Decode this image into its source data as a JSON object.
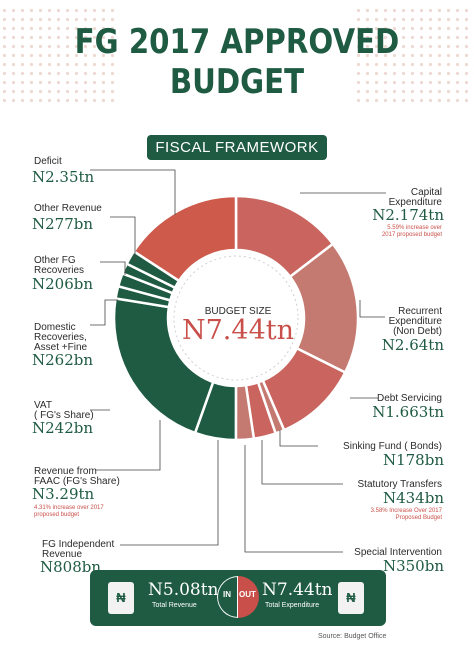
{
  "header": {
    "title": "FG 2017 APPROVED BUDGET",
    "subtitle": "FISCAL FRAMEWORK"
  },
  "center": {
    "label": "BUDGET SIZE",
    "value": "N7.44tn"
  },
  "chart_data": {
    "type": "pie",
    "title": "FG 2017 APPROVED BUDGET",
    "subtitle": "FISCAL FRAMEWORK",
    "slices": [
      {
        "label": "Capital Expenditure",
        "display": "N2.174tn",
        "value": 2174,
        "unit": "N bn",
        "group": "Total Expenditure",
        "note": "5.59% increase over 2017 proposed budget",
        "color": "#c9645e"
      },
      {
        "label": "Recurrent Expenditure (Non Debt)",
        "display": "N2.64tn",
        "value": 2640,
        "unit": "N bn",
        "group": "Total Expenditure",
        "color": "#c57a71"
      },
      {
        "label": "Debt Servicing",
        "display": "N1.663tn",
        "value": 1663,
        "unit": "N bn",
        "group": "Total Expenditure",
        "color": "#c9645e"
      },
      {
        "label": "Sinking Fund ( Bonds)",
        "display": "N178bn",
        "value": 178,
        "unit": "N bn",
        "group": "Total Expenditure",
        "color": "#c57a71"
      },
      {
        "label": "Statutory Transfers",
        "display": "N434bn",
        "value": 434,
        "unit": "N bn",
        "group": "Total Expenditure",
        "note": "3.58% Increase Over 2017 Proposed Budget",
        "color": "#c9645e"
      },
      {
        "label": "Special Intervention",
        "display": "N350bn",
        "value": 350,
        "unit": "N bn",
        "group": "Total Expenditure",
        "color": "#c57a71"
      },
      {
        "label": "FG Independent Revenue",
        "display": "N808bn",
        "value": 808,
        "unit": "N bn",
        "group": "Total Revenue",
        "color": "#1f5b43"
      },
      {
        "label": "Revenue from FAAC (FG's Share)",
        "display": "N3.29tn",
        "value": 3290,
        "unit": "N bn",
        "group": "Total Revenue",
        "note": "4.31% increase over 2017 proposed budget",
        "color": "#1f5b43"
      },
      {
        "label": "VAT ( FG's Share)",
        "display": "N242bn",
        "value": 242,
        "unit": "N bn",
        "group": "Total Revenue",
        "color": "#1f5b43"
      },
      {
        "label": "Domestic Recoveries, Asset +Fine",
        "display": "N262bn",
        "value": 262,
        "unit": "N bn",
        "group": "Total Revenue",
        "color": "#1f5b43"
      },
      {
        "label": "Other FG Recoveries",
        "display": "N206bn",
        "value": 206,
        "unit": "N bn",
        "group": "Total Revenue",
        "color": "#1f5b43"
      },
      {
        "label": "Other Revenue",
        "display": "N277bn",
        "value": 277,
        "unit": "N bn",
        "group": "Total Revenue",
        "color": "#1f5b43"
      },
      {
        "label": "Deficit",
        "display": "N2.35tn",
        "value": 2350,
        "unit": "N bn",
        "group": "Deficit",
        "color": "#cd5a4b"
      }
    ],
    "totals": {
      "revenue": {
        "value": "N5.08tn",
        "label": "Total Revenue"
      },
      "expenditure": {
        "value": "N7.44tn",
        "label": "Total Expenditure"
      },
      "budget_size": "N7.44tn"
    }
  },
  "labels": {
    "deficit": {
      "name": "Deficit",
      "value": "N2.35tn"
    },
    "other_revenue": {
      "name": "Other Revenue",
      "value": "N277bn"
    },
    "other_fg": {
      "name1": "Other FG",
      "name2": "Recoveries",
      "value": "N206bn"
    },
    "domestic": {
      "name1": "Domestic",
      "name2": "Recoveries,",
      "name3": "Asset +Fine",
      "value": "N262bn"
    },
    "vat": {
      "name1": "VAT",
      "name2": "( FG's Share)",
      "value": "N242bn"
    },
    "faac": {
      "name1": "Revenue from",
      "name2": "FAAC (FG's Share)",
      "value": "N3.29tn",
      "note1": "4.31% increase over 2017",
      "note2": "proposed budget"
    },
    "independent": {
      "name1": "FG Independent",
      "name2": "Revenue",
      "value": "N808bn"
    },
    "capital": {
      "name1": "Capital",
      "name2": "Expenditure",
      "value": "N2.174tn",
      "note1": "5.59% increase over",
      "note2": "2017 proposed budget"
    },
    "recurrent": {
      "name1": "Recurrent",
      "name2": "Expenditure",
      "name3": "(Non Debt)",
      "value": "N2.64tn"
    },
    "debt": {
      "name": "Debt Servicing",
      "value": "N1.663tn"
    },
    "sinking": {
      "name": "Sinking Fund ( Bonds)",
      "value": "N178bn"
    },
    "statutory": {
      "name": "Statutory Transfers",
      "value": "N434bn",
      "note1": "3.58% Increase Over 2017",
      "note2": "Proposed Budget"
    },
    "special": {
      "name": "Special Intervention",
      "value": "N350bn"
    }
  },
  "footer": {
    "revenue_value": "N5.08tn",
    "revenue_label": "Total Revenue",
    "expenditure_value": "N7.44tn",
    "expenditure_label": "Total Expenditure",
    "in_label": "IN",
    "out_label": "OUT",
    "bag_symbol": "₦"
  },
  "source": "Source: Budget Office"
}
